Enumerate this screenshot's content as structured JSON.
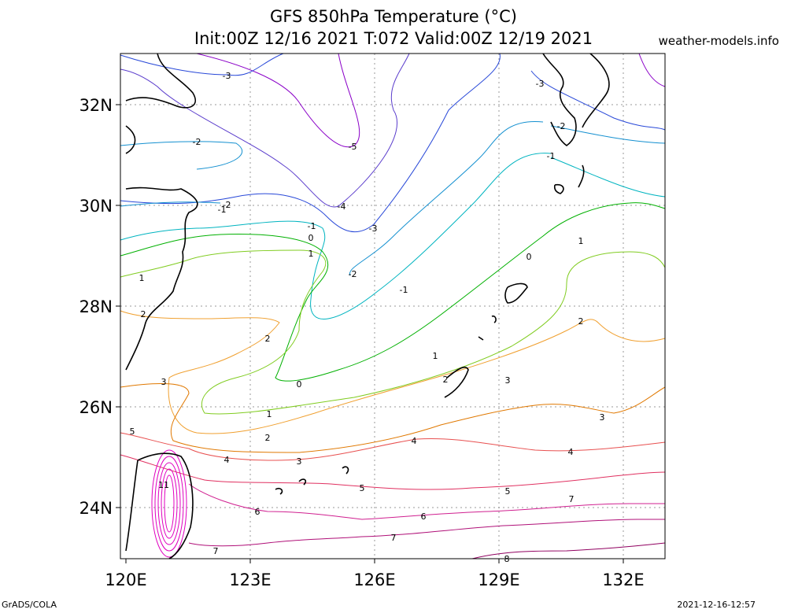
{
  "title_line1": "GFS 850hPa Temperature (°C)",
  "title_line2": "Init:00Z 12/16 2021 T:072 Valid:00Z 12/19 2021",
  "credit": "weather-models.info",
  "footer_left": "GrADS/COLA",
  "footer_right": "2021-12-16-12:57",
  "lon_labels": [
    "120E",
    "123E",
    "126E",
    "129E",
    "132E"
  ],
  "lat_labels": [
    "32N",
    "30N",
    "28N",
    "26N",
    "24N"
  ],
  "contour_labels": [
    "-5",
    "-4",
    "-3",
    "-3",
    "-3",
    "-2",
    "-2",
    "-2",
    "-2",
    "-1",
    "-1",
    "-1",
    "-1",
    "0",
    "0",
    "0",
    "1",
    "1",
    "1",
    "1",
    "1",
    "2",
    "2",
    "2",
    "2",
    "2",
    "3",
    "3",
    "3",
    "3",
    "4",
    "4",
    "4",
    "5",
    "5",
    "5",
    "6",
    "6",
    "7",
    "7",
    "7",
    "8",
    "11"
  ],
  "contour_colors": {
    "-5": "#8a00c8",
    "-4": "#5a3ccc",
    "-3": "#2848d8",
    "-2": "#1490d0",
    "-1": "#00b4c0",
    "0": "#00b000",
    "1": "#80cc20",
    "2": "#f0a030",
    "3": "#e07800",
    "4": "#e85050",
    "5": "#e03060",
    "6": "#d02090",
    "7": "#b01078",
    "8": "#900060",
    "11": "#e000c0"
  },
  "coast_color": "#000000",
  "grid": "dotted"
}
